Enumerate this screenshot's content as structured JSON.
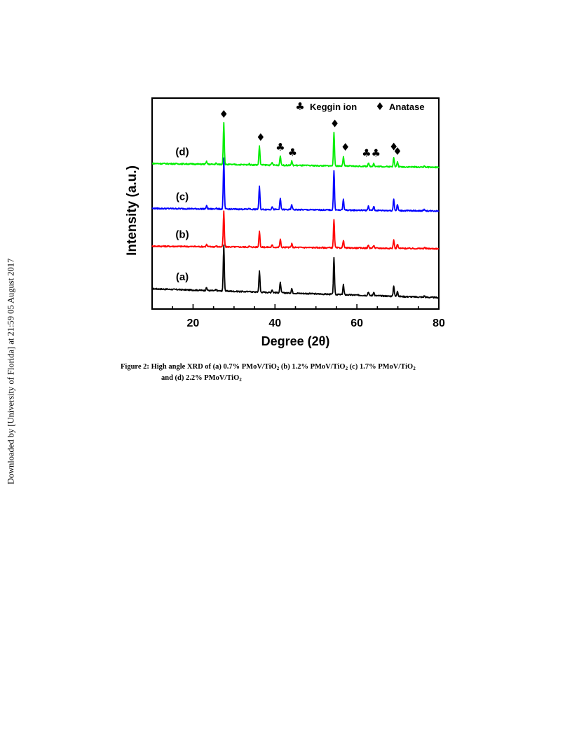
{
  "side_note": "Downloaded by [University of Florida] at 21:59 05 August 2017",
  "caption": {
    "label": "Figure 2:",
    "line1": [
      {
        "t": "High angle XRD of (a) 0.7% PMoV/TiO"
      },
      {
        "sub": "2"
      },
      {
        "t": " (b) 1.2% PMoV/TiO"
      },
      {
        "sub": "2"
      },
      {
        "t": " (c) 1.7% PMoV/TiO"
      },
      {
        "sub": "2"
      }
    ],
    "line2": [
      {
        "t": "and (d) 2.2% PMoV/TiO"
      },
      {
        "sub": "2"
      }
    ]
  },
  "chart_data": {
    "type": "line",
    "xlabel": "Degree (2θ)",
    "ylabel": "Intensity (a.u.)",
    "xlim": [
      10,
      80
    ],
    "xticks": [
      "20",
      "40",
      "60",
      "80"
    ],
    "legend": {
      "placement": "top-right",
      "entries": [
        {
          "symbol": "♣",
          "label": "Keggin ion"
        },
        {
          "symbol": "♦",
          "label": "Anatase"
        }
      ]
    },
    "peaks": [
      {
        "x": 23.3,
        "rel": 0.06
      },
      {
        "x": 25.6,
        "rel": 0.025
      },
      {
        "x": 27.5,
        "rel": 1.0
      },
      {
        "x": 33.7,
        "rel": 0.02
      },
      {
        "x": 36.2,
        "rel": 0.45
      },
      {
        "x": 39.3,
        "rel": 0.06
      },
      {
        "x": 41.3,
        "rel": 0.22
      },
      {
        "x": 44.1,
        "rel": 0.1
      },
      {
        "x": 54.4,
        "rel": 0.78
      },
      {
        "x": 56.7,
        "rel": 0.22
      },
      {
        "x": 62.8,
        "rel": 0.08
      },
      {
        "x": 64.1,
        "rel": 0.08
      },
      {
        "x": 69.0,
        "rel": 0.23
      },
      {
        "x": 69.9,
        "rel": 0.12
      },
      {
        "x": 76.5,
        "rel": 0.03
      }
    ],
    "series": [
      {
        "label": "(a)",
        "color": "#000000",
        "baseline": [
          0.042,
          0.0
        ],
        "peak_height": 0.22
      },
      {
        "label": "(b)",
        "color": "#ff0000",
        "baseline": [
          0.012,
          0.0
        ],
        "peak_height": 0.17
      },
      {
        "label": "(c)",
        "color": "#0000ff",
        "baseline": [
          0.012,
          0.0
        ],
        "peak_height": 0.24
      },
      {
        "label": "(d)",
        "color": "#00ee00",
        "baseline": [
          0.018,
          0.0
        ],
        "peak_height": 0.2
      }
    ],
    "markers": [
      {
        "symbol": "♦",
        "x": 27.5,
        "series": "(d)"
      },
      {
        "symbol": "♦",
        "x": 36.5,
        "series": "(d)"
      },
      {
        "symbol": "♣",
        "x": 41.3,
        "series": "(d)"
      },
      {
        "symbol": "♣",
        "x": 44.3,
        "series": "(d)"
      },
      {
        "symbol": "♦",
        "x": 54.6,
        "series": "(d)"
      },
      {
        "symbol": "♦",
        "x": 57.2,
        "series": "(d)"
      },
      {
        "symbol": "♣♣",
        "x": 63.5,
        "series": "(d)"
      },
      {
        "symbol": "♦",
        "x": 69.0,
        "series": "(d)"
      },
      {
        "symbol": "♦",
        "x": 69.9,
        "series": "(d)"
      }
    ]
  }
}
